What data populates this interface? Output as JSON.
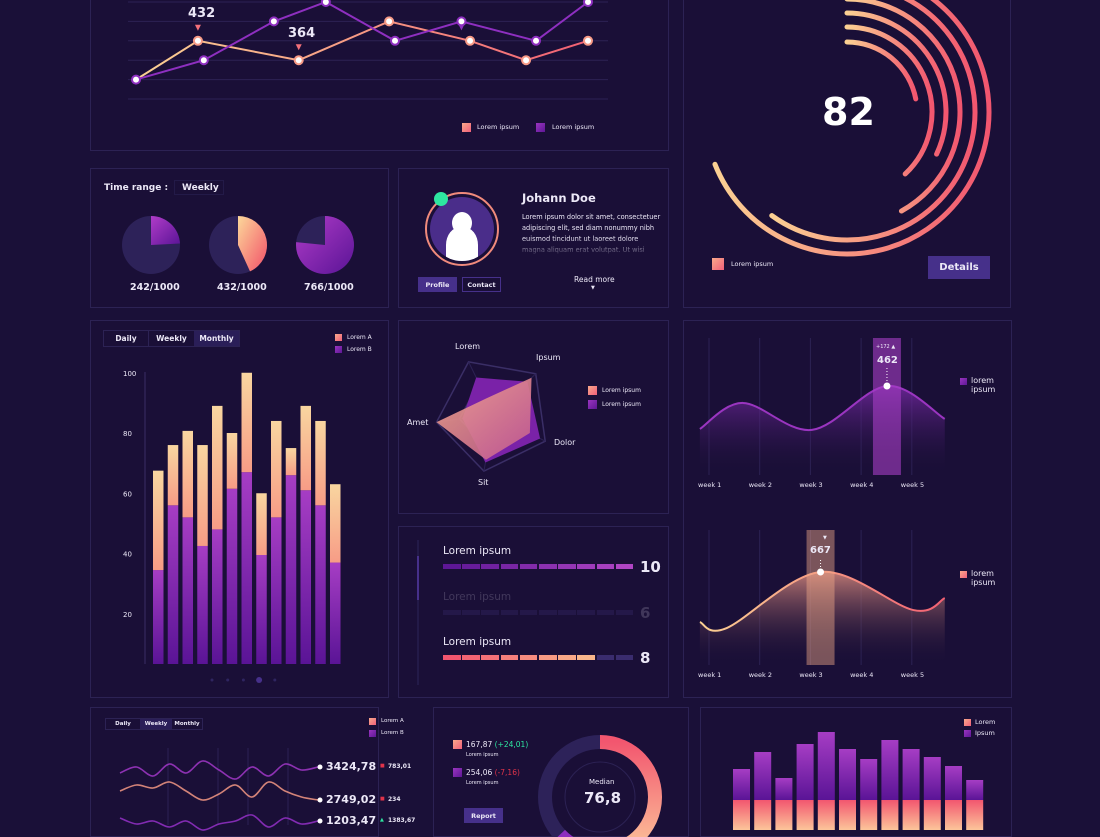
{
  "colors": {
    "background": "#1a1038",
    "panel": "#1a0f37",
    "accent_purple": "#8e2fc0",
    "accent_peach": "#f7b58c",
    "accent_pink": "#f0566f",
    "button": "#46308a",
    "positive": "#2ee6a0",
    "negative": "#e0334a"
  },
  "top_line_chart": {
    "chart_data": {
      "type": "line",
      "grid": true,
      "x_range": [
        0,
        100
      ],
      "y_range": [
        0,
        5
      ],
      "series": [
        {
          "color": "#f7a38a",
          "x": [
            0,
            13.7,
            36,
            56,
            73.9,
            86.3,
            100
          ],
          "y": [
            1,
            3,
            2,
            4,
            3,
            2,
            3
          ]
        },
        {
          "color": "#9a35c0",
          "x": [
            0,
            15,
            30.5,
            42,
            57.3,
            72,
            88.5,
            100
          ],
          "y": [
            1,
            2,
            4,
            5,
            3,
            4,
            3,
            5
          ]
        }
      ],
      "annotations": [
        {
          "series": 0,
          "point": 1,
          "text": "432"
        },
        {
          "series": 0,
          "point": 2,
          "text": "364"
        }
      ],
      "marker": {
        "series": 1,
        "point": 5
      }
    },
    "legend": [
      "Lorem ipsum",
      "Lorem ipsum"
    ]
  },
  "gauge": {
    "value": "82",
    "rings": [
      0.69,
      0.6,
      0.42,
      0.32,
      0.38,
      0.22
    ],
    "legend": "Lorem ipsum",
    "details_label": "Details"
  },
  "time_range": {
    "label": "Time range :",
    "selected": "Weekly",
    "pies": [
      {
        "value": 242,
        "total": 1000,
        "text": "242/1000",
        "color": "purple"
      },
      {
        "value": 432,
        "total": 1000,
        "text": "432/1000",
        "color": "peach"
      },
      {
        "value": 766,
        "total": 1000,
        "text": "766/1000",
        "color": "purple"
      }
    ]
  },
  "profile": {
    "name": "Johann Doe",
    "bio": "Lorem ipsum dolor sit amet, consectetuer adipiscing elit, sed diam nonummy nibh euismod tincidunt ut laoreet dolore magna aliquam erat volutpat. Ut wisi enim ad minim veniam, quis nostrud",
    "profile_label": "Profile",
    "contact_label": "Contact",
    "read_more": "Read more",
    "status": "online"
  },
  "bar_chart": {
    "tabs": [
      "Daily",
      "Weekly",
      "Monthly"
    ],
    "active_tab": 2,
    "legend": [
      "Lorem A",
      "Lorem B"
    ],
    "chart_data": {
      "type": "bar",
      "stacked": true,
      "ylim": [
        0,
        100
      ],
      "yticks": [
        20,
        40,
        60,
        80,
        100
      ],
      "series": [
        {
          "name": "Lorem B",
          "values": [
            34.5,
            56,
            52,
            42.5,
            48,
            61.5,
            67,
            39.5,
            52,
            66,
            61,
            56,
            37
          ]
        },
        {
          "name": "Lorem A",
          "values": [
            33,
            20,
            28.7,
            33.5,
            41,
            18.5,
            33,
            20.5,
            32,
            9,
            28,
            28,
            26
          ]
        }
      ]
    },
    "pages": 5,
    "active_page": 3
  },
  "radar": {
    "chart_data": {
      "type": "radar",
      "axes": [
        "Lorem",
        "Ipsum",
        "Dolor",
        "Sit",
        "Amet"
      ],
      "max": 1,
      "series": [
        {
          "name": "Lorem ipsum",
          "color": "peach",
          "values": [
            0.3,
            0.9,
            0.7,
            0.8,
            1.0
          ]
        },
        {
          "name": "Lorem ipsum",
          "color": "purple",
          "values": [
            0.7,
            0.8,
            0.9,
            0.85,
            0.55
          ]
        }
      ]
    }
  },
  "progress": {
    "rows": [
      {
        "label": "Lorem ipsum",
        "value": 10,
        "text": "10",
        "style": "purple",
        "faded": false
      },
      {
        "label": "Lorem ipsum",
        "value": 6,
        "text": "6",
        "style": "dim",
        "faded": true
      },
      {
        "label": "Lorem ipsum",
        "value": 8,
        "text": "8",
        "style": "peach",
        "faded": false
      }
    ],
    "segments": 10
  },
  "waves": [
    {
      "chart_data": {
        "type": "area",
        "x_labels": [
          "week 1",
          "week 2",
          "week 3",
          "week 4",
          "week 5"
        ],
        "x": [
          0.82,
          1.67,
          3.03,
          4.51,
          5.65
        ],
        "y": [
          239,
          374,
          234,
          462,
          291
        ],
        "highlight_x": 4.51,
        "highlight_value": "462",
        "highlight_delta": "+172 ▲"
      },
      "legend": "lorem ipsum",
      "color": "purple"
    },
    {
      "chart_data": {
        "type": "area",
        "x_labels": [
          "week 1",
          "week 2",
          "week 3",
          "week 4",
          "week 5"
        ],
        "x": [
          0.82,
          1.35,
          3.2,
          5.03,
          5.65
        ],
        "y": [
          308,
          265,
          667,
          394,
          480
        ],
        "highlight_x": 3.2,
        "highlight_value": "667",
        "highlight_delta": "▼"
      },
      "legend": "lorem ipsum",
      "color": "peach"
    }
  ],
  "multi_line": {
    "tabs": [
      "Daily",
      "Weekly",
      "Monthly"
    ],
    "active_tab": 1,
    "legend": [
      "Lorem A",
      "Lorem B"
    ],
    "chart_data": {
      "type": "line",
      "series": [
        {
          "color": "purple",
          "y": [
            3,
            5,
            2,
            6,
            3,
            7,
            4,
            1,
            5,
            2,
            6,
            4,
            5
          ],
          "value": "3424,78",
          "delta": "783,01",
          "trend": "down"
        },
        {
          "color": "peach",
          "y": [
            4,
            6,
            5,
            7,
            4,
            1,
            3,
            6,
            2,
            7,
            4,
            2,
            1
          ],
          "value": "2749,02",
          "delta": "234",
          "trend": "down"
        },
        {
          "color": "purple",
          "y": [
            6,
            4,
            5,
            3,
            5,
            2,
            4,
            5,
            7,
            3,
            6,
            4,
            5
          ],
          "value": "1203,47",
          "delta": "1383,67",
          "trend": "up"
        }
      ]
    }
  },
  "donut": {
    "items": [
      {
        "value": "167,87",
        "change": "(+24,01)",
        "label": "Lorem ipsum",
        "trend": "up"
      },
      {
        "value": "254,06",
        "change": "(-7,16)",
        "label": "Lorem ipsum",
        "trend": "down"
      }
    ],
    "report_label": "Report",
    "center_label": "Median",
    "center_value": "76,8",
    "chart_data": {
      "type": "donut",
      "values": [
        0.57,
        0.06
      ]
    }
  },
  "bottom_bars": {
    "legend": [
      "Lorem",
      "Ipsum"
    ],
    "chart_data": {
      "type": "bar",
      "values": [
        31,
        48,
        22,
        56,
        68,
        51,
        41,
        60,
        51,
        43,
        34,
        20
      ]
    }
  }
}
